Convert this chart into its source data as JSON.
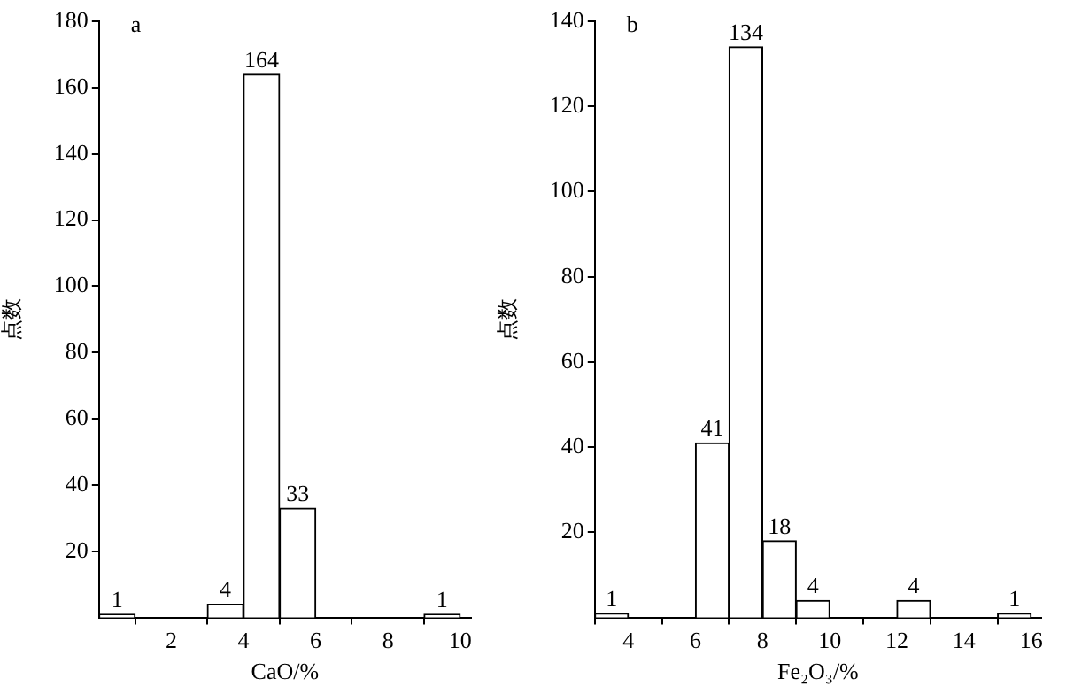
{
  "chart_data": [
    {
      "type": "histogram",
      "title": "a",
      "xlabel": "CaO/%",
      "ylabel": "点数",
      "bins": [
        0,
        1,
        2,
        3,
        4,
        5,
        6,
        7,
        8,
        9,
        10
      ],
      "values": [
        1,
        0,
        0,
        4,
        164,
        33,
        0,
        0,
        0,
        1
      ],
      "value_labels": [
        "1",
        null,
        null,
        "4",
        "164",
        "33",
        null,
        null,
        null,
        "1"
      ],
      "color": "#ffffff",
      "xlim": [
        0,
        10.3
      ],
      "xticks": [
        2,
        4,
        6,
        8,
        10
      ],
      "ylim": [
        0,
        180
      ],
      "yticks": [
        20,
        40,
        60,
        80,
        100,
        120,
        140,
        160,
        180
      ],
      "grid": false,
      "legend": false
    },
    {
      "type": "histogram",
      "title": "b",
      "xlabel": "Fe₂O₃/%",
      "ylabel": "点数",
      "bins": [
        3,
        4,
        5,
        6,
        7,
        8,
        9,
        10,
        11,
        12,
        13,
        14,
        15,
        16
      ],
      "values": [
        1,
        0,
        0,
        41,
        134,
        18,
        4,
        0,
        0,
        4,
        0,
        0,
        1
      ],
      "value_labels": [
        "1",
        null,
        null,
        "41",
        "134",
        "18",
        "4",
        null,
        null,
        "4",
        null,
        null,
        "1"
      ],
      "color": "#ffffff",
      "xlim": [
        3,
        16.3
      ],
      "xticks": [
        4,
        6,
        8,
        10,
        12,
        14,
        16
      ],
      "ylim": [
        0,
        140
      ],
      "yticks": [
        20,
        40,
        60,
        80,
        100,
        120,
        140
      ],
      "grid": false,
      "legend": false
    }
  ]
}
